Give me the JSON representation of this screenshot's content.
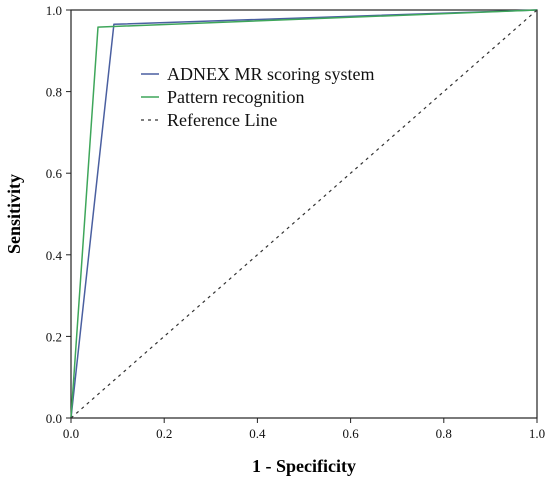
{
  "chart_data": {
    "type": "line",
    "title": "",
    "xlabel": "1 - Specificity",
    "ylabel": "Sensitivity",
    "xlim": [
      0,
      1
    ],
    "ylim": [
      0,
      1
    ],
    "xticks": [
      "0.0",
      "0.2",
      "0.4",
      "0.6",
      "0.8",
      "1.0"
    ],
    "yticks": [
      "0.0",
      "0.2",
      "0.4",
      "0.6",
      "0.8",
      "1.0"
    ],
    "grid": false,
    "legend_position": "top-right (inside plot)",
    "series": [
      {
        "name": "ADNEX MR scoring system",
        "color": "#4a5fa0",
        "style": "solid",
        "x": [
          0.0,
          0.092,
          1.0
        ],
        "y": [
          0.0,
          0.965,
          1.0
        ]
      },
      {
        "name": "Pattern recognition",
        "color": "#3ea65a",
        "style": "solid",
        "x": [
          0.0,
          0.058,
          1.0
        ],
        "y": [
          0.0,
          0.958,
          1.0
        ]
      },
      {
        "name": "Reference Line",
        "color": "#333333",
        "style": "dashed",
        "x": [
          0.0,
          1.0
        ],
        "y": [
          0.0,
          1.0
        ]
      }
    ]
  }
}
